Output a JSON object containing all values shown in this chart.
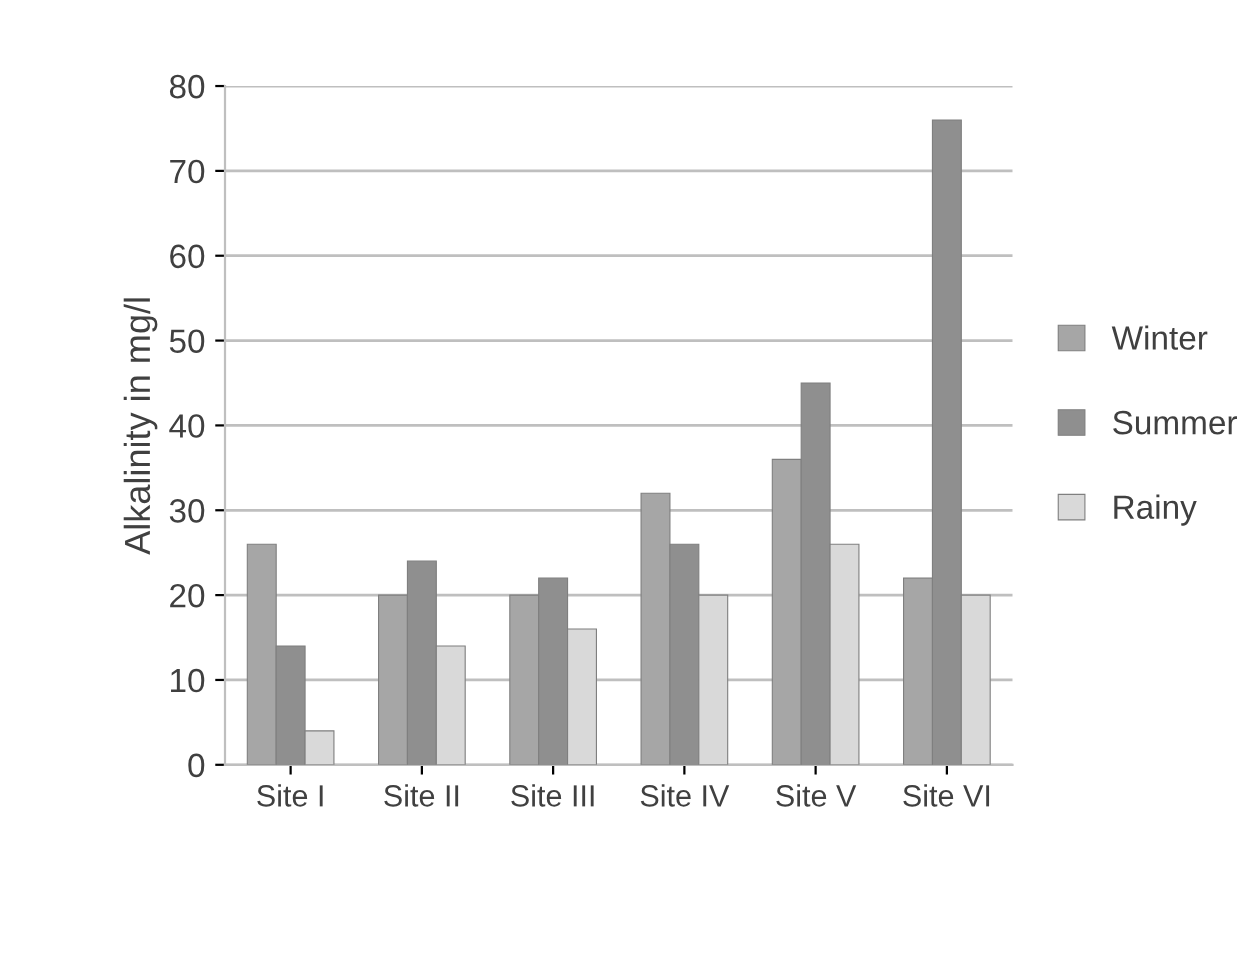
{
  "chart_data": {
    "type": "bar",
    "ylabel": "Alkalinity in mg/l",
    "categories": [
      "Site I",
      "Site II",
      "Site III",
      "Site IV",
      "Site V",
      "Site VI"
    ],
    "series": [
      {
        "name": "Winter",
        "color": "#a6a6a6",
        "values": [
          26,
          20,
          20,
          32,
          36,
          22
        ]
      },
      {
        "name": "Summer",
        "color": "#8f8f8f",
        "values": [
          14,
          24,
          22,
          26,
          45,
          76
        ]
      },
      {
        "name": "Rainy",
        "color": "#d9d9d9",
        "values": [
          4,
          14,
          16,
          20,
          26,
          20
        ]
      }
    ],
    "ylim": [
      0,
      80
    ],
    "yticks": [
      0,
      10,
      20,
      30,
      40,
      50,
      60,
      70,
      80
    ],
    "grid": "y",
    "legend": "right"
  }
}
